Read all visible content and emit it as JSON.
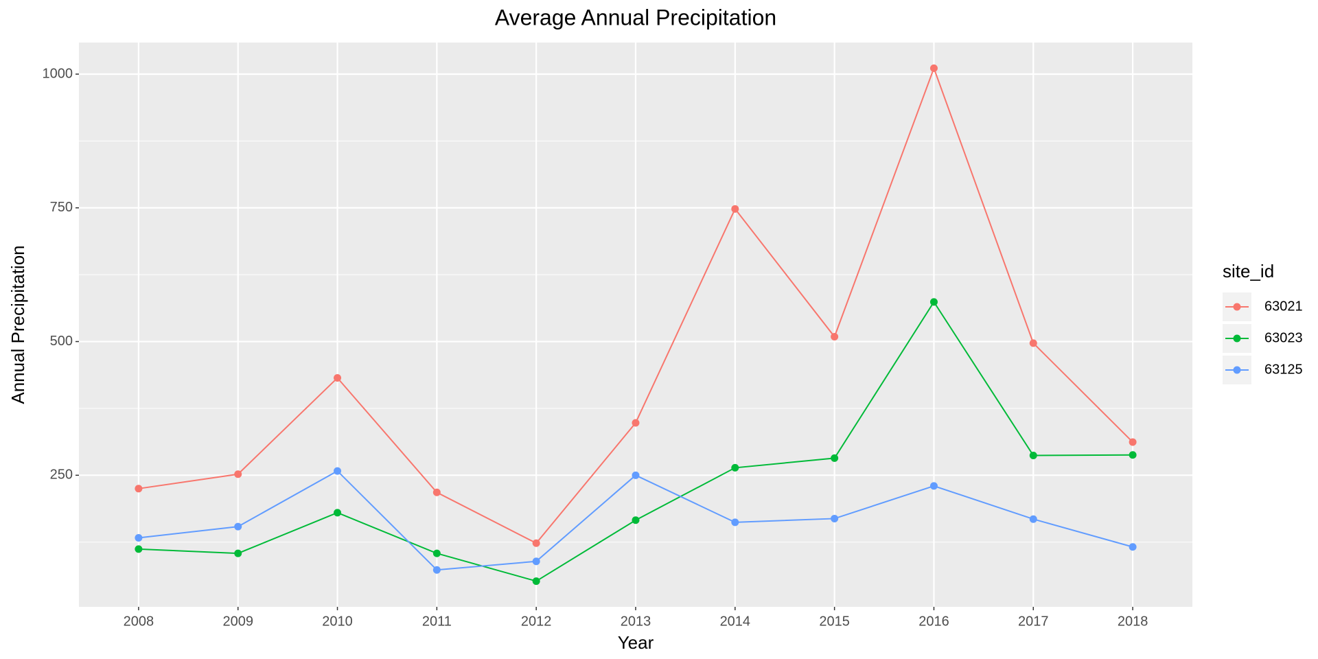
{
  "chart_data": {
    "type": "line",
    "title": "Average Annual Precipitation",
    "x_label": "Year",
    "y_label": "Annual Precipitation",
    "legend_title": "site_id",
    "x": [
      2008,
      2009,
      2010,
      2011,
      2012,
      2013,
      2014,
      2015,
      2016,
      2017,
      2018
    ],
    "series": [
      {
        "name": "63021",
        "color": "#f8766d",
        "values": [
          225,
          252,
          432,
          218,
          123,
          348,
          748,
          509,
          1011,
          497,
          312
        ]
      },
      {
        "name": "63023",
        "color": "#00ba38",
        "values": [
          112,
          104,
          180,
          104,
          52,
          166,
          264,
          282,
          574,
          287,
          288
        ]
      },
      {
        "name": "63125",
        "color": "#619cff",
        "values": [
          133,
          154,
          258,
          73,
          89,
          250,
          162,
          169,
          230,
          168,
          116
        ]
      }
    ],
    "xlim": [
      2007.4,
      2018.6
    ],
    "xticks": [
      2008,
      2009,
      2010,
      2011,
      2012,
      2013,
      2014,
      2015,
      2016,
      2017,
      2018
    ],
    "ylim": [
      4,
      1059
    ],
    "yticks": [
      250,
      500,
      750,
      1000
    ],
    "y_minor_ticks": [
      125,
      375,
      625,
      875
    ],
    "grid": true,
    "legend": "right"
  }
}
